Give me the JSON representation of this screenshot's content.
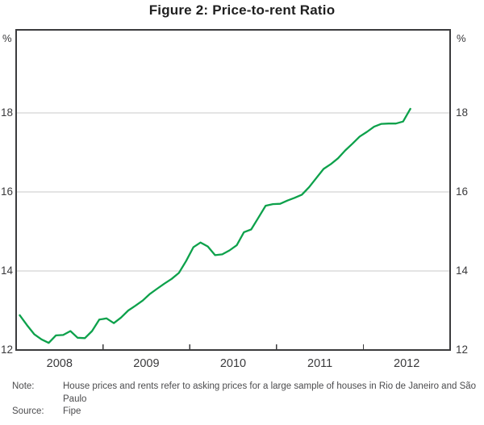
{
  "figure": {
    "title": "Figure 2: Price-to-rent Ratio",
    "y_unit": "%"
  },
  "chart_data": {
    "type": "line",
    "title": "Figure 2: Price-to-rent Ratio",
    "ylabel": "%",
    "ylim": [
      12,
      20.1
    ],
    "grid": "horizontal",
    "legend": "none",
    "y_tick_labels": [
      12,
      14,
      16,
      18
    ],
    "x_tick_labels": [
      "2008",
      "2009",
      "2010",
      "2011",
      "2012"
    ],
    "x_start": "2008-01",
    "x_end": "2012-07",
    "frequency": "monthly",
    "series": [
      {
        "name": "Price-to-rent ratio",
        "values": [
          12.88,
          12.63,
          12.4,
          12.27,
          12.18,
          12.37,
          12.38,
          12.48,
          12.31,
          12.3,
          12.48,
          12.77,
          12.8,
          12.68,
          12.82,
          13.0,
          13.12,
          13.25,
          13.42,
          13.55,
          13.68,
          13.8,
          13.95,
          14.25,
          14.6,
          14.72,
          14.62,
          14.4,
          14.42,
          14.52,
          14.65,
          14.98,
          15.05,
          15.35,
          15.65,
          15.69,
          15.7,
          15.78,
          15.85,
          15.93,
          16.12,
          16.35,
          16.58,
          16.7,
          16.85,
          17.05,
          17.22,
          17.4,
          17.52,
          17.65,
          17.72,
          17.73,
          17.73,
          17.78,
          18.1
        ]
      }
    ]
  },
  "style": {
    "line_color": "#0da14b",
    "grid_color": "#c9c9c9",
    "axis_color": "#3b3b3d",
    "text_color": "#3a3a3c"
  },
  "footer": {
    "note_label": "Note:",
    "note_text": "House prices and rents refer to asking prices for a large sample of houses in Rio de Janeiro and São Paulo",
    "source_label": "Source:",
    "source_text": "Fipe"
  }
}
